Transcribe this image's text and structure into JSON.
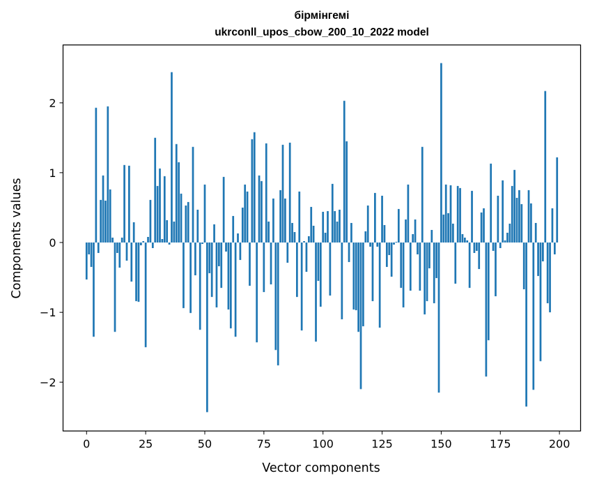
{
  "chart_data": {
    "type": "bar",
    "title": "бірмінгемі",
    "subtitle": "ukrconll_upos_cbow_200_10_2022 model",
    "xlabel": "Vector components",
    "ylabel": "Components values",
    "xlim": [
      -9.95,
      208.95
    ],
    "ylim": [
      -2.7,
      2.83
    ],
    "x_ticks": [
      0,
      25,
      50,
      75,
      100,
      125,
      150,
      175,
      200
    ],
    "y_ticks": [
      -2,
      -1,
      0,
      1,
      2
    ],
    "y_tick_labels": [
      "−2",
      "−1",
      "0",
      "1",
      "2"
    ],
    "bar_color": "#1f77b4",
    "values": [
      -0.53,
      -0.17,
      -0.35,
      -1.35,
      1.93,
      -0.15,
      0.61,
      0.96,
      0.6,
      1.95,
      0.76,
      0.07,
      -1.28,
      -0.15,
      -0.36,
      0.07,
      1.11,
      -0.26,
      1.1,
      -0.56,
      0.29,
      -0.84,
      -0.85,
      -0.04,
      0.02,
      -1.5,
      0.08,
      0.61,
      -0.08,
      1.5,
      0.81,
      1.06,
      0.05,
      0.95,
      0.32,
      -0.03,
      2.44,
      0.3,
      1.41,
      1.15,
      0.7,
      -0.94,
      0.53,
      0.58,
      -1.01,
      1.37,
      -0.47,
      0.47,
      -1.25,
      -0.02,
      0.83,
      -2.43,
      -0.44,
      -0.78,
      0.26,
      -0.93,
      -0.34,
      -0.65,
      0.94,
      -0.13,
      -0.96,
      -1.23,
      0.38,
      -1.35,
      0.13,
      -0.25,
      0.5,
      0.83,
      0.73,
      -0.62,
      1.48,
      1.58,
      -1.43,
      0.96,
      0.88,
      -0.71,
      1.42,
      0.3,
      -0.6,
      0.63,
      -1.54,
      -1.76,
      0.75,
      1.4,
      0.63,
      -0.29,
      1.43,
      0.28,
      0.15,
      -0.78,
      0.73,
      -1.26,
      0.02,
      -0.42,
      0.09,
      0.51,
      0.24,
      -1.42,
      -0.55,
      -0.92,
      0.44,
      0.14,
      0.45,
      -0.76,
      0.84,
      0.45,
      0.3,
      0.47,
      -1.1,
      2.03,
      1.45,
      -0.28,
      0.28,
      -0.96,
      -0.97,
      -1.28,
      -2.1,
      -1.2,
      0.16,
      0.53,
      -0.06,
      -0.84,
      0.71,
      -0.06,
      -1.22,
      0.67,
      0.25,
      -0.35,
      -0.18,
      -0.49,
      -0.03,
      0.01,
      0.48,
      -0.65,
      -0.93,
      0.33,
      0.83,
      -0.69,
      0.12,
      0.33,
      -0.17,
      -0.69,
      1.37,
      -1.03,
      -0.84,
      -0.37,
      0.18,
      -0.87,
      -0.51,
      -2.15,
      2.57,
      0.4,
      0.83,
      0.42,
      0.82,
      0.27,
      -0.59,
      0.81,
      0.78,
      0.12,
      0.07,
      0.03,
      -0.65,
      0.74,
      -0.15,
      -0.12,
      -0.38,
      0.43,
      0.49,
      -1.92,
      -1.4,
      1.13,
      -0.12,
      -0.77,
      0.67,
      -0.08,
      0.89,
      0.03,
      0.14,
      0.27,
      0.81,
      1.04,
      0.64,
      0.75,
      0.55,
      -0.67,
      -2.35,
      0.75,
      0.56,
      -2.11,
      0.28,
      -0.48,
      -1.7,
      -0.27,
      2.17,
      -0.87,
      -1.0,
      0.49,
      -0.17,
      1.22
    ]
  }
}
